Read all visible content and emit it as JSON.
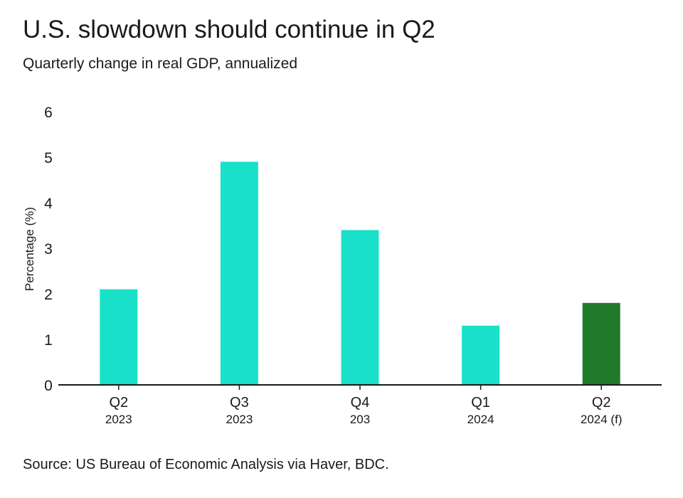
{
  "title": "U.S. slowdown should continue in Q2",
  "subtitle": "Quarterly change in real GDP, annualized",
  "source": "Source: US Bureau of Economic Analysis via Haver, BDC.",
  "colors": {
    "actual": "#19e0c8",
    "forecast": "#207a2c",
    "axis": "#1a1a1a"
  },
  "chart_data": {
    "type": "bar",
    "categories": [
      "Q2",
      "Q3",
      "Q4",
      "Q1",
      "Q2"
    ],
    "category_years": [
      "2023",
      "2023",
      "203",
      "2024",
      "2024 (f)"
    ],
    "values": [
      2.1,
      4.9,
      3.4,
      1.3,
      1.8
    ],
    "forecast": [
      false,
      false,
      false,
      false,
      true
    ],
    "ylabel": "Percentage (%)",
    "ylim": [
      0,
      6
    ],
    "yticks": [
      0,
      1,
      2,
      3,
      4,
      5,
      6
    ],
    "grid": false,
    "legend": "none"
  }
}
